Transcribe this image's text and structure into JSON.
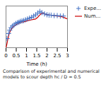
{
  "chart_data": {
    "type": "line",
    "xlabel": "Time (h)",
    "caption": "Comparison of experimental and numerical\nmodels to scour depth hc / D = 0.5",
    "xlim": [
      0,
      3
    ],
    "xticks": [
      0,
      0.5,
      1,
      1.5,
      2,
      2.5,
      3
    ],
    "ylim": [
      0,
      1.0
    ],
    "tick_labels": "x",
    "legend": "right",
    "series": [
      {
        "name": "Expe...",
        "type": "scatter",
        "marker": "plus",
        "color": "#4472c4",
        "x": [
          0.05,
          0.12,
          0.18,
          0.25,
          0.32,
          0.4,
          0.48,
          0.56,
          0.63,
          0.7,
          0.78,
          0.86,
          0.95,
          1.05,
          1.15,
          1.25,
          1.35,
          1.45,
          1.55,
          1.65,
          1.75,
          1.88,
          2.0,
          2.1,
          2.2,
          2.35,
          2.5,
          2.65,
          2.8
        ],
        "values": [
          0.22,
          0.34,
          0.42,
          0.48,
          0.52,
          0.55,
          0.58,
          0.6,
          0.61,
          0.63,
          0.64,
          0.65,
          0.67,
          0.69,
          0.71,
          0.73,
          0.76,
          0.79,
          0.83,
          0.87,
          0.84,
          0.81,
          0.79,
          0.78,
          0.78,
          0.77,
          0.77,
          0.76,
          0.76
        ]
      },
      {
        "name": "Num...",
        "type": "line",
        "color": "#cc0000",
        "x": [
          0.0,
          0.04,
          0.08,
          0.15,
          0.25,
          0.35,
          0.45,
          0.55,
          0.65,
          0.75,
          0.85,
          0.95,
          1.05,
          1.15,
          1.25,
          1.35,
          1.45,
          1.55,
          1.62,
          1.68,
          1.73,
          1.78,
          1.85,
          1.95,
          2.05,
          2.2,
          2.35,
          2.5,
          2.65,
          2.8,
          2.9,
          3.0
        ],
        "values": [
          0.0,
          0.08,
          0.18,
          0.33,
          0.44,
          0.5,
          0.54,
          0.57,
          0.59,
          0.61,
          0.62,
          0.63,
          0.65,
          0.66,
          0.67,
          0.68,
          0.69,
          0.73,
          0.77,
          0.8,
          0.82,
          0.83,
          0.82,
          0.8,
          0.79,
          0.78,
          0.77,
          0.76,
          0.75,
          0.73,
          0.71,
          0.69
        ]
      }
    ]
  }
}
